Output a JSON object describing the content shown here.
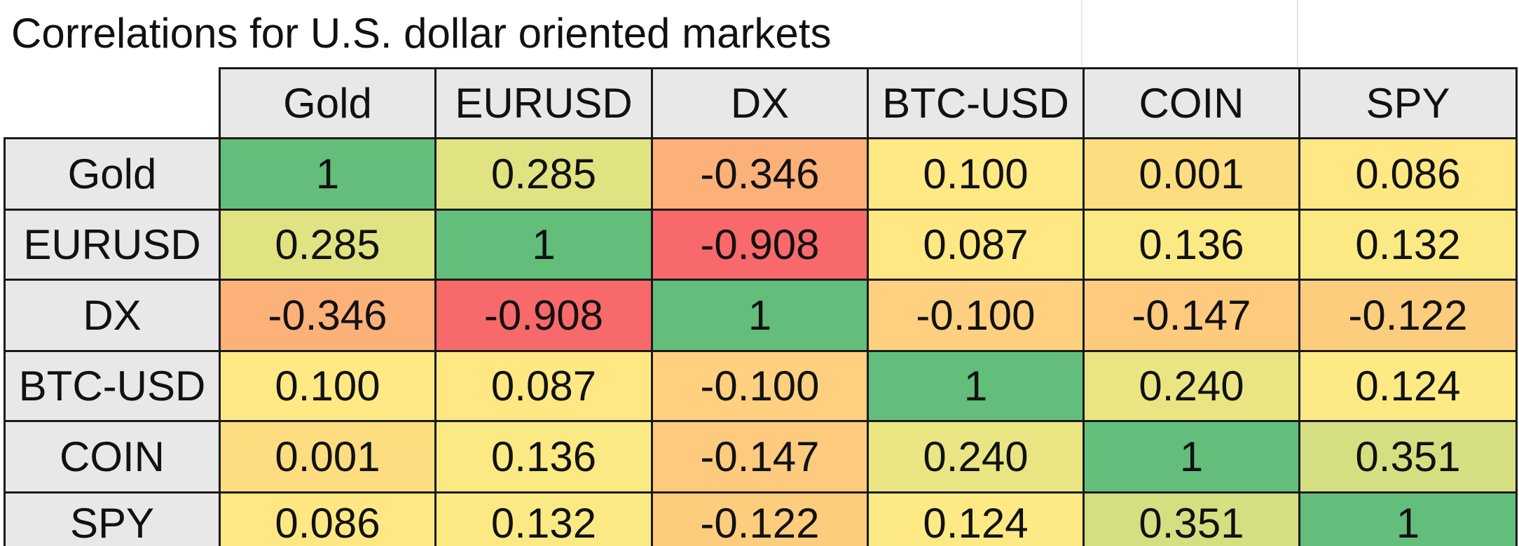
{
  "chart_data": {
    "type": "heatmap",
    "title": "Correlations for U.S. dollar oriented markets",
    "columns": [
      "Gold",
      "EURUSD",
      "DX",
      "BTC-USD",
      "COIN",
      "SPY"
    ],
    "rows": [
      "Gold",
      "EURUSD",
      "DX",
      "BTC-USD",
      "COIN",
      "SPY"
    ],
    "values": [
      [
        1,
        0.285,
        -0.346,
        0.1,
        0.001,
        0.086
      ],
      [
        0.285,
        1,
        -0.908,
        0.087,
        0.136,
        0.132
      ],
      [
        -0.346,
        -0.908,
        1,
        -0.1,
        -0.147,
        -0.122
      ],
      [
        0.1,
        0.087,
        -0.1,
        1,
        0.24,
        0.124
      ],
      [
        0.001,
        0.136,
        -0.147,
        0.24,
        1,
        0.351
      ],
      [
        0.086,
        0.132,
        -0.122,
        0.124,
        0.351,
        1
      ]
    ],
    "labels": [
      [
        "1",
        "0.285",
        "-0.346",
        "0.100",
        "0.001",
        "0.086"
      ],
      [
        "0.285",
        "1",
        "-0.908",
        "0.087",
        "0.136",
        "0.132"
      ],
      [
        "-0.346",
        "-0.908",
        "1",
        "-0.100",
        "-0.147",
        "-0.122"
      ],
      [
        "0.100",
        "0.087",
        "-0.100",
        "1",
        "0.240",
        "0.124"
      ],
      [
        "0.001",
        "0.136",
        "-0.147",
        "0.240",
        "1",
        "0.351"
      ],
      [
        "0.086",
        "0.132",
        "-0.122",
        "0.124",
        "0.351",
        "1"
      ]
    ],
    "color_scale": {
      "low": "#f8696b",
      "mid": "#ffeb84",
      "high": "#63be7b"
    },
    "header_fill": "#e8e8e8",
    "border_color": "#1a1a1a"
  }
}
